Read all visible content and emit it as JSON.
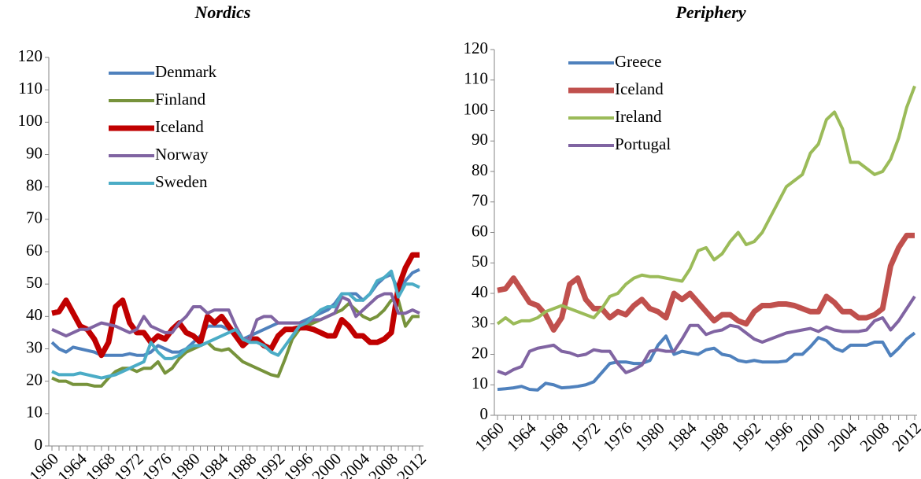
{
  "chart_data": [
    {
      "type": "line",
      "title": "Nordics",
      "x": [
        1960,
        1961,
        1962,
        1963,
        1964,
        1965,
        1966,
        1967,
        1968,
        1969,
        1970,
        1971,
        1972,
        1973,
        1974,
        1975,
        1976,
        1977,
        1978,
        1979,
        1980,
        1981,
        1982,
        1983,
        1984,
        1985,
        1986,
        1987,
        1988,
        1989,
        1990,
        1991,
        1992,
        1993,
        1994,
        1995,
        1996,
        1997,
        1998,
        1999,
        2000,
        2001,
        2002,
        2003,
        2004,
        2005,
        2006,
        2007,
        2008,
        2009,
        2010,
        2011,
        2012
      ],
      "xlim": [
        1960,
        2012
      ],
      "xticks": [
        1960,
        1964,
        1968,
        1972,
        1976,
        1980,
        1984,
        1988,
        1992,
        1996,
        2000,
        2004,
        2008,
        2012
      ],
      "ylim": [
        0,
        120
      ],
      "yticks": [
        0,
        10,
        20,
        30,
        40,
        50,
        60,
        70,
        80,
        90,
        100,
        110,
        120
      ],
      "series": [
        {
          "name": "Denmark",
          "color": "#4f81bd",
          "linewidth": 4,
          "values": [
            32,
            30,
            29,
            30.5,
            30,
            29.5,
            29,
            28,
            28,
            28,
            28,
            28.5,
            28,
            28,
            29,
            31,
            30,
            29,
            29,
            30,
            32,
            34,
            37,
            37,
            37,
            36,
            34,
            33,
            34,
            35,
            36,
            37,
            38,
            38,
            38,
            38,
            39,
            40,
            41,
            42,
            44,
            47,
            47,
            47,
            45,
            47,
            50,
            52,
            53,
            48,
            51,
            53.5,
            54.5
          ]
        },
        {
          "name": "Finland",
          "color": "#77933c",
          "linewidth": 4,
          "values": [
            21,
            20,
            20,
            19,
            19,
            19,
            18.5,
            18.5,
            21,
            23,
            24,
            24,
            23,
            24,
            24,
            26,
            22.5,
            24,
            27,
            29,
            30,
            31,
            32,
            30,
            29.5,
            30,
            28,
            26,
            25,
            24,
            23,
            22,
            21.5,
            27,
            33,
            36,
            37,
            38,
            39,
            40,
            41,
            42,
            44,
            42,
            40,
            39,
            40,
            42,
            45,
            45,
            37,
            40,
            40
          ]
        },
        {
          "name": "Iceland",
          "color": "#c00000",
          "linewidth": 7,
          "values": [
            41,
            41.5,
            45,
            41,
            37,
            36,
            33,
            28,
            32,
            43,
            45,
            38,
            35,
            35,
            32,
            34,
            33,
            36,
            38,
            35,
            34,
            32,
            40,
            38,
            40,
            37,
            34,
            31,
            33,
            33,
            31,
            30,
            34,
            36,
            36,
            36.5,
            36.5,
            36,
            35,
            34,
            34,
            39,
            37,
            34,
            34,
            32,
            32,
            33,
            35,
            49,
            55,
            59,
            59
          ]
        },
        {
          "name": "Norway",
          "color": "#8064a2",
          "linewidth": 4,
          "values": [
            36,
            35,
            34,
            35,
            36,
            36,
            37,
            38,
            37.5,
            37,
            36,
            35,
            36,
            40,
            37,
            36,
            35,
            35,
            38,
            40,
            43,
            43,
            41,
            42,
            42,
            42,
            37,
            33,
            33,
            39,
            40,
            40,
            38,
            38,
            38,
            38,
            38,
            39,
            39,
            40,
            41,
            46,
            45,
            40,
            42,
            44,
            46,
            47,
            47,
            41,
            41,
            42,
            41
          ]
        },
        {
          "name": "Sweden",
          "color": "#4bacc6",
          "linewidth": 4,
          "values": [
            23,
            22,
            22,
            22,
            22.5,
            22,
            21.5,
            21,
            21.5,
            22,
            23,
            24,
            25,
            26,
            32,
            29,
            27,
            27,
            28,
            30,
            31,
            31,
            32,
            33,
            34,
            35,
            36,
            33,
            32,
            32,
            31,
            29,
            28,
            31,
            34,
            37,
            38,
            40,
            42,
            43,
            43,
            47,
            47,
            45,
            45,
            47,
            51,
            52,
            54,
            46,
            50,
            50,
            49
          ]
        }
      ]
    },
    {
      "type": "line",
      "title": "Periphery",
      "x": [
        1960,
        1961,
        1962,
        1963,
        1964,
        1965,
        1966,
        1967,
        1968,
        1969,
        1970,
        1971,
        1972,
        1973,
        1974,
        1975,
        1976,
        1977,
        1978,
        1979,
        1980,
        1981,
        1982,
        1983,
        1984,
        1985,
        1986,
        1987,
        1988,
        1989,
        1990,
        1991,
        1992,
        1993,
        1994,
        1995,
        1996,
        1997,
        1998,
        1999,
        2000,
        2001,
        2002,
        2003,
        2004,
        2005,
        2006,
        2007,
        2008,
        2009,
        2010,
        2011,
        2012
      ],
      "xlim": [
        1960,
        2012
      ],
      "xticks": [
        1960,
        1964,
        1968,
        1972,
        1976,
        1980,
        1984,
        1988,
        1992,
        1996,
        2000,
        2004,
        2008,
        2012
      ],
      "ylim": [
        0,
        120
      ],
      "yticks": [
        0,
        10,
        20,
        30,
        40,
        50,
        60,
        70,
        80,
        90,
        100,
        110,
        120
      ],
      "series": [
        {
          "name": "Greece",
          "color": "#4f81bd",
          "linewidth": 4,
          "values": [
            8.5,
            8.7,
            9,
            9.5,
            8.5,
            8.3,
            10.5,
            10,
            9,
            9.2,
            9.5,
            10,
            11,
            14,
            17,
            17.5,
            17.5,
            17,
            17,
            18,
            23,
            26,
            20,
            21,
            20.5,
            20,
            21.5,
            22,
            20,
            19.5,
            18,
            17.5,
            18,
            17.5,
            17.5,
            17.5,
            17.8,
            20,
            20,
            22.5,
            25.5,
            24.5,
            22,
            21,
            23,
            23,
            23,
            24,
            24,
            19.5,
            22,
            25,
            27
          ]
        },
        {
          "name": "Iceland",
          "color": "#c0504d",
          "linewidth": 7,
          "values": [
            41,
            41.5,
            45,
            41,
            37,
            36,
            33,
            28,
            32,
            43,
            45,
            38,
            35,
            35,
            32,
            34,
            33,
            36,
            38,
            35,
            34,
            32,
            40,
            38,
            40,
            37,
            34,
            31,
            33,
            33,
            31,
            30,
            34,
            36,
            36,
            36.5,
            36.5,
            36,
            35,
            34,
            34,
            39,
            37,
            34,
            34,
            32,
            32,
            33,
            35,
            49,
            55,
            59,
            59
          ]
        },
        {
          "name": "Ireland",
          "color": "#9bbb59",
          "linewidth": 4,
          "values": [
            30,
            32,
            30,
            31,
            31,
            32,
            34,
            35,
            36,
            35,
            34,
            33,
            32,
            35,
            39,
            40,
            43,
            45,
            46,
            45.5,
            45.5,
            45,
            44.5,
            44,
            48,
            54,
            55,
            51,
            53,
            57,
            60,
            56,
            57,
            60,
            65,
            70,
            75,
            77,
            79,
            86,
            89,
            97,
            99.5,
            94,
            83,
            83,
            81,
            79,
            80,
            84,
            91,
            101,
            108
          ]
        },
        {
          "name": "Portugal",
          "color": "#8064a2",
          "linewidth": 4,
          "values": [
            14.5,
            13.5,
            15,
            16,
            21,
            22,
            22.5,
            23,
            21,
            20.5,
            19.5,
            20,
            21.5,
            21,
            21,
            17,
            14,
            15,
            16.5,
            21,
            21.5,
            21,
            21,
            25,
            29.5,
            29.5,
            26.5,
            27.5,
            28,
            29.5,
            29,
            27,
            25,
            24,
            25,
            26,
            27,
            27.5,
            28,
            28.5,
            27.5,
            29,
            28,
            27.5,
            27.5,
            27.5,
            28,
            31,
            32,
            28,
            31,
            35,
            39
          ]
        }
      ]
    }
  ]
}
